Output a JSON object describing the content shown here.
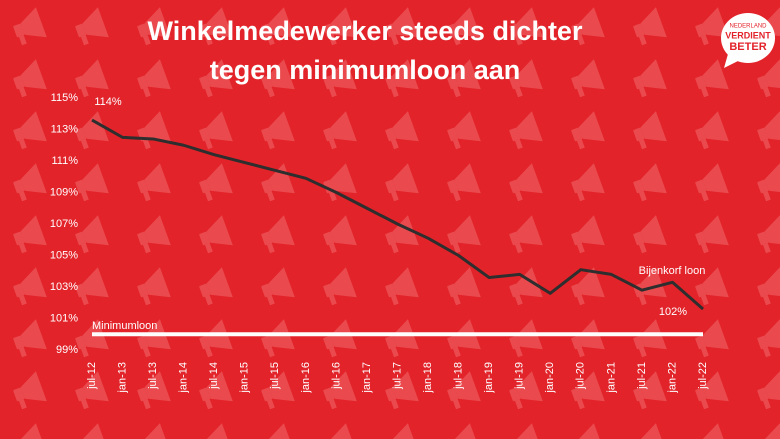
{
  "chart_data": {
    "type": "line",
    "title": [
      "Winkelmedewerker steeds dichter",
      "tegen minimumloon aan"
    ],
    "categories": [
      "jul-12",
      "jan-13",
      "jul-13",
      "jan-14",
      "jul-14",
      "jan-15",
      "jul-15",
      "jan-16",
      "jul-16",
      "jan-17",
      "jul-17",
      "jan-18",
      "jul-18",
      "jan-19",
      "jul-19",
      "jan-20",
      "jul-20",
      "jan-21",
      "jul-21",
      "jan-22",
      "jul-22"
    ],
    "series": [
      {
        "name": "Bijenkorf loon",
        "color": "#2e2e2e",
        "values": [
          113.6,
          112.5,
          112.4,
          112.0,
          111.4,
          110.9,
          110.4,
          109.9,
          109.0,
          108.0,
          107.0,
          106.1,
          105.0,
          103.6,
          103.8,
          102.6,
          104.1,
          103.8,
          102.8,
          103.3,
          101.6
        ],
        "value_labels": [
          "114%",
          null,
          null,
          null,
          null,
          null,
          null,
          null,
          null,
          null,
          null,
          null,
          null,
          null,
          null,
          null,
          null,
          null,
          null,
          null,
          "102%"
        ]
      },
      {
        "name": "Minimumloon",
        "color": "#ffffff",
        "values": [
          100,
          100,
          100,
          100,
          100,
          100,
          100,
          100,
          100,
          100,
          100,
          100,
          100,
          100,
          100,
          100,
          100,
          100,
          100,
          100,
          100
        ]
      }
    ],
    "ylim": [
      99,
      115
    ],
    "yticks": [
      {
        "value": 99,
        "label": "99%"
      },
      {
        "value": 101,
        "label": "101%"
      },
      {
        "value": 103,
        "label": "103%"
      },
      {
        "value": 105,
        "label": "105%"
      },
      {
        "value": 107,
        "label": "107%"
      },
      {
        "value": 109,
        "label": "109%"
      },
      {
        "value": 111,
        "label": "111%"
      },
      {
        "value": 113,
        "label": "113%"
      },
      {
        "value": 115,
        "label": "115%"
      }
    ],
    "grid": false
  },
  "logo": [
    "NEDERLAND",
    "VERDIENT",
    "BETER"
  ]
}
